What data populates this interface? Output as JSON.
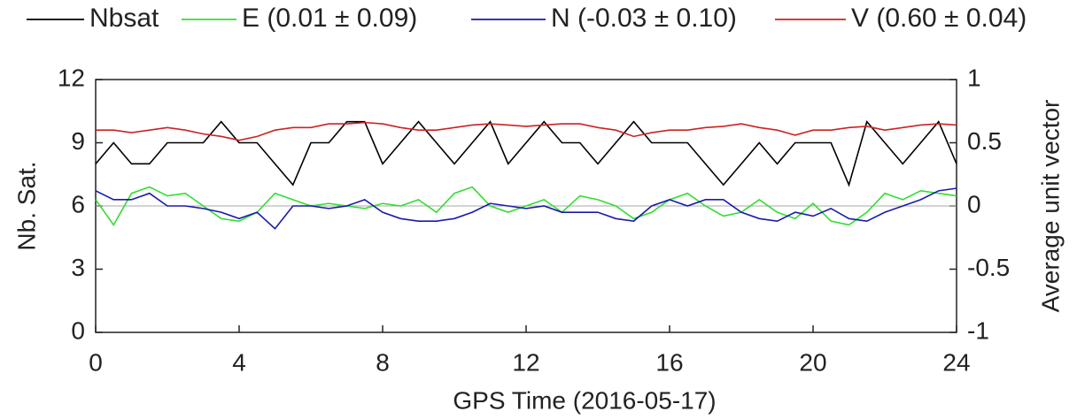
{
  "chart_data": {
    "type": "line",
    "xlabel": "GPS Time (2016-05-17)",
    "ylabel": "Nb. Sat.",
    "y2label": "Average unit vector",
    "x": [
      0,
      0.5,
      1,
      1.5,
      2,
      2.5,
      3,
      3.5,
      4,
      4.5,
      5,
      5.5,
      6,
      6.5,
      7,
      7.5,
      8,
      8.5,
      9,
      9.5,
      10,
      10.5,
      11,
      11.5,
      12,
      12.5,
      13,
      13.5,
      14,
      14.5,
      15,
      15.5,
      16,
      16.5,
      17,
      17.5,
      18,
      18.5,
      19,
      19.5,
      20,
      20.5,
      21,
      21.5,
      22,
      22.5,
      23,
      23.5,
      24
    ],
    "series": [
      {
        "name": "Nbsat",
        "color": "#000000",
        "axis": "y",
        "values": [
          8,
          9,
          8,
          8,
          9,
          9,
          9,
          10,
          9,
          9,
          8,
          7,
          9,
          9,
          10,
          10,
          8,
          9,
          10,
          9,
          8,
          9,
          10,
          8,
          9,
          10,
          9,
          9,
          8,
          9,
          10,
          9,
          9,
          9,
          8,
          7,
          8,
          9,
          8,
          9,
          9,
          9,
          7,
          10,
          9,
          8,
          9,
          10,
          8
        ]
      },
      {
        "name": "E (0.01 ± 0.09)",
        "color": "#33dd33",
        "axis": "y2",
        "values": [
          0.05,
          -0.15,
          0.1,
          0.15,
          0.08,
          0.1,
          0.0,
          -0.1,
          -0.12,
          -0.05,
          0.1,
          0.05,
          0.0,
          0.02,
          0.0,
          -0.02,
          0.02,
          0.0,
          0.05,
          -0.05,
          0.1,
          0.15,
          0.0,
          -0.05,
          0.0,
          0.05,
          -0.05,
          0.08,
          0.05,
          0.0,
          -0.1,
          -0.05,
          0.05,
          0.1,
          0.0,
          -0.08,
          -0.05,
          0.05,
          -0.05,
          -0.1,
          0.02,
          -0.12,
          -0.15,
          -0.05,
          0.1,
          0.05,
          0.12,
          0.1,
          0.08
        ]
      },
      {
        "name": "N (-0.03 ± 0.10)",
        "color": "#1a1aaa",
        "axis": "y2",
        "values": [
          0.12,
          0.05,
          0.05,
          0.1,
          0.0,
          0.0,
          -0.02,
          -0.05,
          -0.1,
          -0.05,
          -0.18,
          0.0,
          0.0,
          -0.02,
          0.0,
          0.05,
          -0.05,
          -0.1,
          -0.12,
          -0.12,
          -0.1,
          -0.05,
          0.02,
          0.0,
          -0.02,
          0.0,
          -0.05,
          -0.05,
          -0.05,
          -0.1,
          -0.12,
          0.0,
          0.05,
          0.0,
          0.05,
          0.05,
          -0.05,
          -0.1,
          -0.12,
          -0.05,
          -0.08,
          -0.02,
          -0.1,
          -0.12,
          -0.05,
          0.0,
          0.05,
          0.12,
          0.14
        ]
      },
      {
        "name": "V (0.60 ± 0.04)",
        "color": "#cc2222",
        "axis": "y2",
        "values": [
          0.6,
          0.6,
          0.58,
          0.6,
          0.62,
          0.6,
          0.57,
          0.55,
          0.52,
          0.55,
          0.6,
          0.62,
          0.62,
          0.65,
          0.65,
          0.66,
          0.65,
          0.62,
          0.6,
          0.6,
          0.62,
          0.64,
          0.65,
          0.64,
          0.63,
          0.64,
          0.65,
          0.65,
          0.62,
          0.6,
          0.55,
          0.58,
          0.6,
          0.6,
          0.62,
          0.63,
          0.65,
          0.62,
          0.6,
          0.56,
          0.6,
          0.6,
          0.62,
          0.63,
          0.6,
          0.62,
          0.64,
          0.65,
          0.64
        ]
      }
    ],
    "xlim": [
      0,
      24
    ],
    "xticks": [
      0,
      4,
      8,
      12,
      16,
      20,
      24
    ],
    "ylim": [
      0,
      12
    ],
    "yticks": [
      0,
      3,
      6,
      9,
      12
    ],
    "y2lim": [
      -1,
      1
    ],
    "y2ticks": [
      -1,
      -0.5,
      0,
      0.5,
      1
    ],
    "reference_line": {
      "axis": "y2",
      "value": 0,
      "color": "#aaaaaa"
    },
    "legend": "top"
  }
}
